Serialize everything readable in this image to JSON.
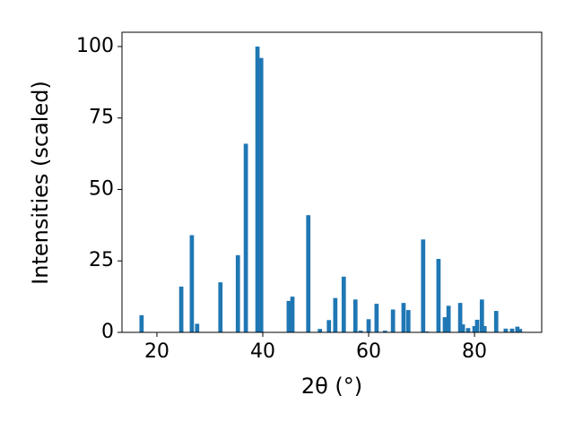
{
  "chart_data": {
    "type": "bar",
    "xlabel": "2θ (°)",
    "ylabel": "Intensities (scaled)",
    "x": [
      17.1,
      24.6,
      26.6,
      27.6,
      32.0,
      35.3,
      36.8,
      39.0,
      39.7,
      44.9,
      45.6,
      48.6,
      50.8,
      52.5,
      53.7,
      55.3,
      57.5,
      58.5,
      60.0,
      61.5,
      63.1,
      64.6,
      66.6,
      67.5,
      70.3,
      71.0,
      73.2,
      74.4,
      75.1,
      77.3,
      77.8,
      78.8,
      80.0,
      80.5,
      81.4,
      81.9,
      84.1,
      85.9,
      87.1,
      88.1,
      88.6
    ],
    "values": [
      6,
      16,
      34,
      3,
      17.5,
      27,
      66,
      100,
      96,
      11,
      12.5,
      41,
      1.2,
      4.3,
      12,
      19.5,
      11.5,
      0.6,
      4.6,
      10,
      0.6,
      8,
      10.3,
      7.8,
      32.5,
      0.3,
      25.7,
      5.3,
      9.3,
      10.3,
      2.8,
      1.5,
      2.2,
      4.4,
      11.5,
      2.2,
      7.5,
      1.3,
      1.3,
      2,
      1.2
    ],
    "color": "#1f77b4",
    "xlim": [
      13.4,
      92.7
    ],
    "xticks": [
      20,
      40,
      60,
      80
    ],
    "ylim": [
      0,
      105
    ],
    "yticks": [
      0,
      25,
      50,
      75,
      100
    ]
  }
}
